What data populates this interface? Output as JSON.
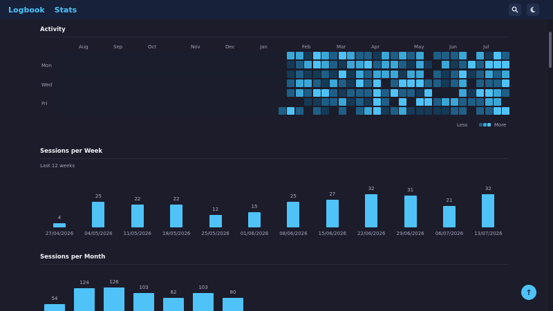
{
  "header": {
    "nav": [
      "Logbook",
      "Stats"
    ],
    "icons": [
      "search-icon",
      "theme-moon-icon"
    ]
  },
  "activity": {
    "title": "Activity",
    "months": [
      "Aug",
      "Sep",
      "Oct",
      "Nov",
      "Dec",
      "Jan",
      "Feb",
      "Mar",
      "Apr",
      "May",
      "Jun",
      "Jul"
    ],
    "days": [
      "Mon",
      "Wed",
      "Fri"
    ],
    "legend_less": "Less",
    "legend_more": "More",
    "levels": [
      "#1a1d2b",
      "#153a56",
      "#1f5f86",
      "#3aa7d6",
      "#4fc3f7"
    ],
    "active_from_week": 26,
    "weeks": 53
  },
  "sessions_week": {
    "title": "Sessions per Week",
    "subtitle": "Last 12 weeks"
  },
  "sessions_month": {
    "title": "Sessions per Month"
  },
  "chart_data": [
    {
      "type": "bar",
      "title": "Sessions per Week",
      "subtitle": "Last 12 weeks",
      "categories": [
        "27/04/2026",
        "04/05/2026",
        "11/05/2026",
        "18/05/2026",
        "25/05/2026",
        "01/06/2026",
        "08/06/2026",
        "15/06/2026",
        "22/06/2026",
        "29/06/2026",
        "06/07/2026",
        "13/07/2026"
      ],
      "values": [
        4,
        25,
        22,
        22,
        12,
        15,
        25,
        27,
        32,
        31,
        21,
        32
      ],
      "color": "#4fc3f7"
    },
    {
      "type": "bar",
      "title": "Sessions per Month",
      "values": [
        54,
        124,
        126,
        103,
        82,
        103,
        80
      ],
      "color": "#4fc3f7"
    }
  ],
  "colors": {
    "accent": "#4fc3f7",
    "background": "#1c1c2b",
    "header": "#17213a"
  }
}
